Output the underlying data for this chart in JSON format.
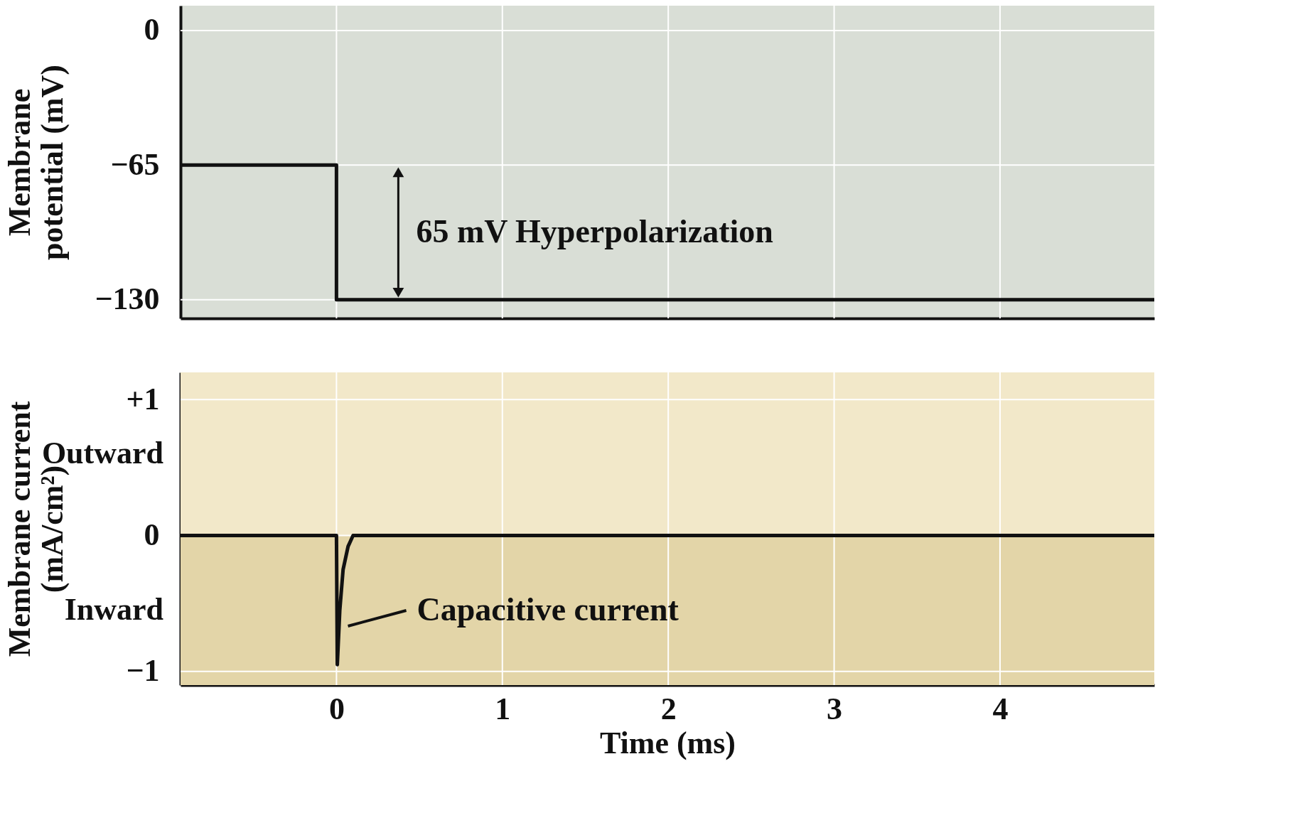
{
  "chart_data": [
    {
      "type": "line",
      "ylabel": "Membrane potential (mV)",
      "x": [
        -0.94,
        0,
        0,
        4.93
      ],
      "series": [
        {
          "color": "#111111",
          "values": [
            -65,
            -65,
            -130,
            -130
          ]
        }
      ],
      "xlim": [
        -0.94,
        4.93
      ],
      "xticks": [
        0,
        1,
        2,
        3,
        4
      ],
      "ylim": [
        -139,
        12
      ],
      "yticks": [
        0,
        -65,
        -130
      ],
      "tick_labels": "y",
      "grid": true,
      "annotations": [
        "65 mV Hyperpolarization"
      ]
    },
    {
      "type": "line",
      "xlabel": "Time (ms)",
      "ylabel": "Membrane current (mA/cm²)",
      "x": [
        -0.94,
        0,
        0.005,
        0.02,
        0.04,
        0.07,
        0.1,
        4.93
      ],
      "series": [
        {
          "color": "#111111",
          "values": [
            0,
            0,
            -0.95,
            -0.55,
            -0.25,
            -0.08,
            0,
            0
          ]
        }
      ],
      "xlim": [
        -0.94,
        4.93
      ],
      "xticks": [
        0,
        1,
        2,
        3,
        4
      ],
      "ylim": [
        -1.1,
        1.2
      ],
      "yticks": [
        {
          "value": 1,
          "label": "+1"
        },
        0,
        -1
      ],
      "grid": true,
      "bands": [
        {
          "axis": "y",
          "from": 0,
          "to": 1.2,
          "label": "Outward",
          "color": "#f2e8c9"
        },
        {
          "axis": "y",
          "from": -1.1,
          "to": 0,
          "label": "Inward",
          "color": "#e3d5a8"
        }
      ],
      "annotations": [
        "Capacitive current"
      ]
    }
  ]
}
